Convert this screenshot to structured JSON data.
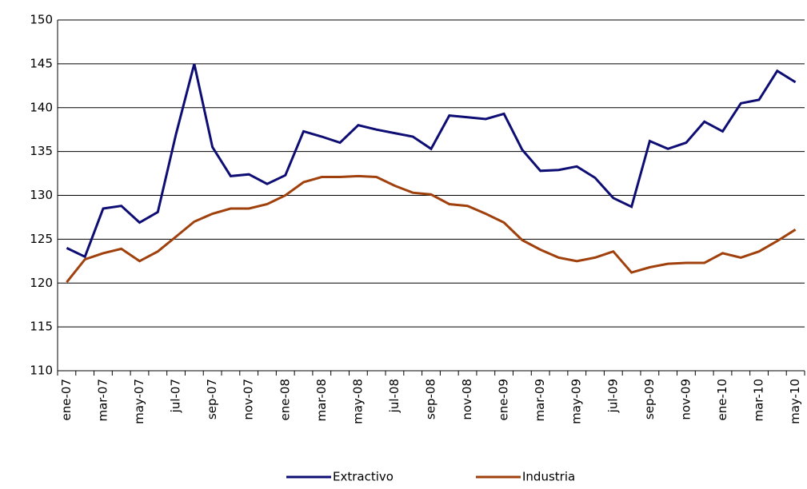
{
  "chart_data": {
    "type": "line",
    "categories": [
      "ene-07",
      null,
      "mar-07",
      null,
      "may-07",
      null,
      "jul-07",
      null,
      "sep-07",
      null,
      "nov-07",
      null,
      "ene-08",
      null,
      "mar-08",
      null,
      "may-08",
      null,
      "jul-08",
      null,
      "sep-08",
      null,
      "nov-08",
      null,
      "ene-09",
      null,
      "mar-09",
      null,
      "may-09",
      null,
      "jul-09",
      null,
      "sep-09",
      null,
      "nov-09",
      null,
      "ene-10",
      null,
      "mar-10",
      null,
      "may-10"
    ],
    "series": [
      {
        "name": "Extractivo",
        "color": "#0d0d73",
        "values": [
          124,
          123,
          128.5,
          128.8,
          126.9,
          128.1,
          137,
          145,
          135.5,
          132.2,
          132.4,
          131.3,
          132.3,
          137.3,
          136.7,
          136,
          138,
          137.5,
          137.1,
          136.7,
          135.3,
          139.1,
          138.9,
          138.7,
          139.3,
          135.2,
          132.8,
          132.9,
          133.3,
          132,
          129.7,
          128.7,
          136.2,
          135.3,
          136,
          138.4,
          137.3,
          140.5,
          140.9,
          144.2,
          142.9
        ]
      },
      {
        "name": "Industria",
        "color": "#a0400c",
        "values": [
          120.1,
          122.7,
          123.4,
          123.9,
          122.5,
          123.6,
          125.3,
          127,
          127.9,
          128.5,
          128.5,
          129,
          130,
          131.5,
          132.1,
          132.1,
          132.2,
          132.1,
          131.1,
          130.3,
          130.1,
          129,
          128.8,
          127.9,
          126.9,
          124.9,
          123.8,
          122.9,
          122.5,
          122.9,
          123.6,
          121.2,
          121.8,
          122.2,
          122.3,
          122.3,
          123.4,
          122.9,
          123.6,
          124.8,
          126.1
        ]
      }
    ],
    "ylim": [
      110,
      150
    ],
    "yticks": [
      110,
      115,
      120,
      125,
      130,
      135,
      140,
      145,
      150
    ],
    "grid": true,
    "legend": "bottom"
  }
}
